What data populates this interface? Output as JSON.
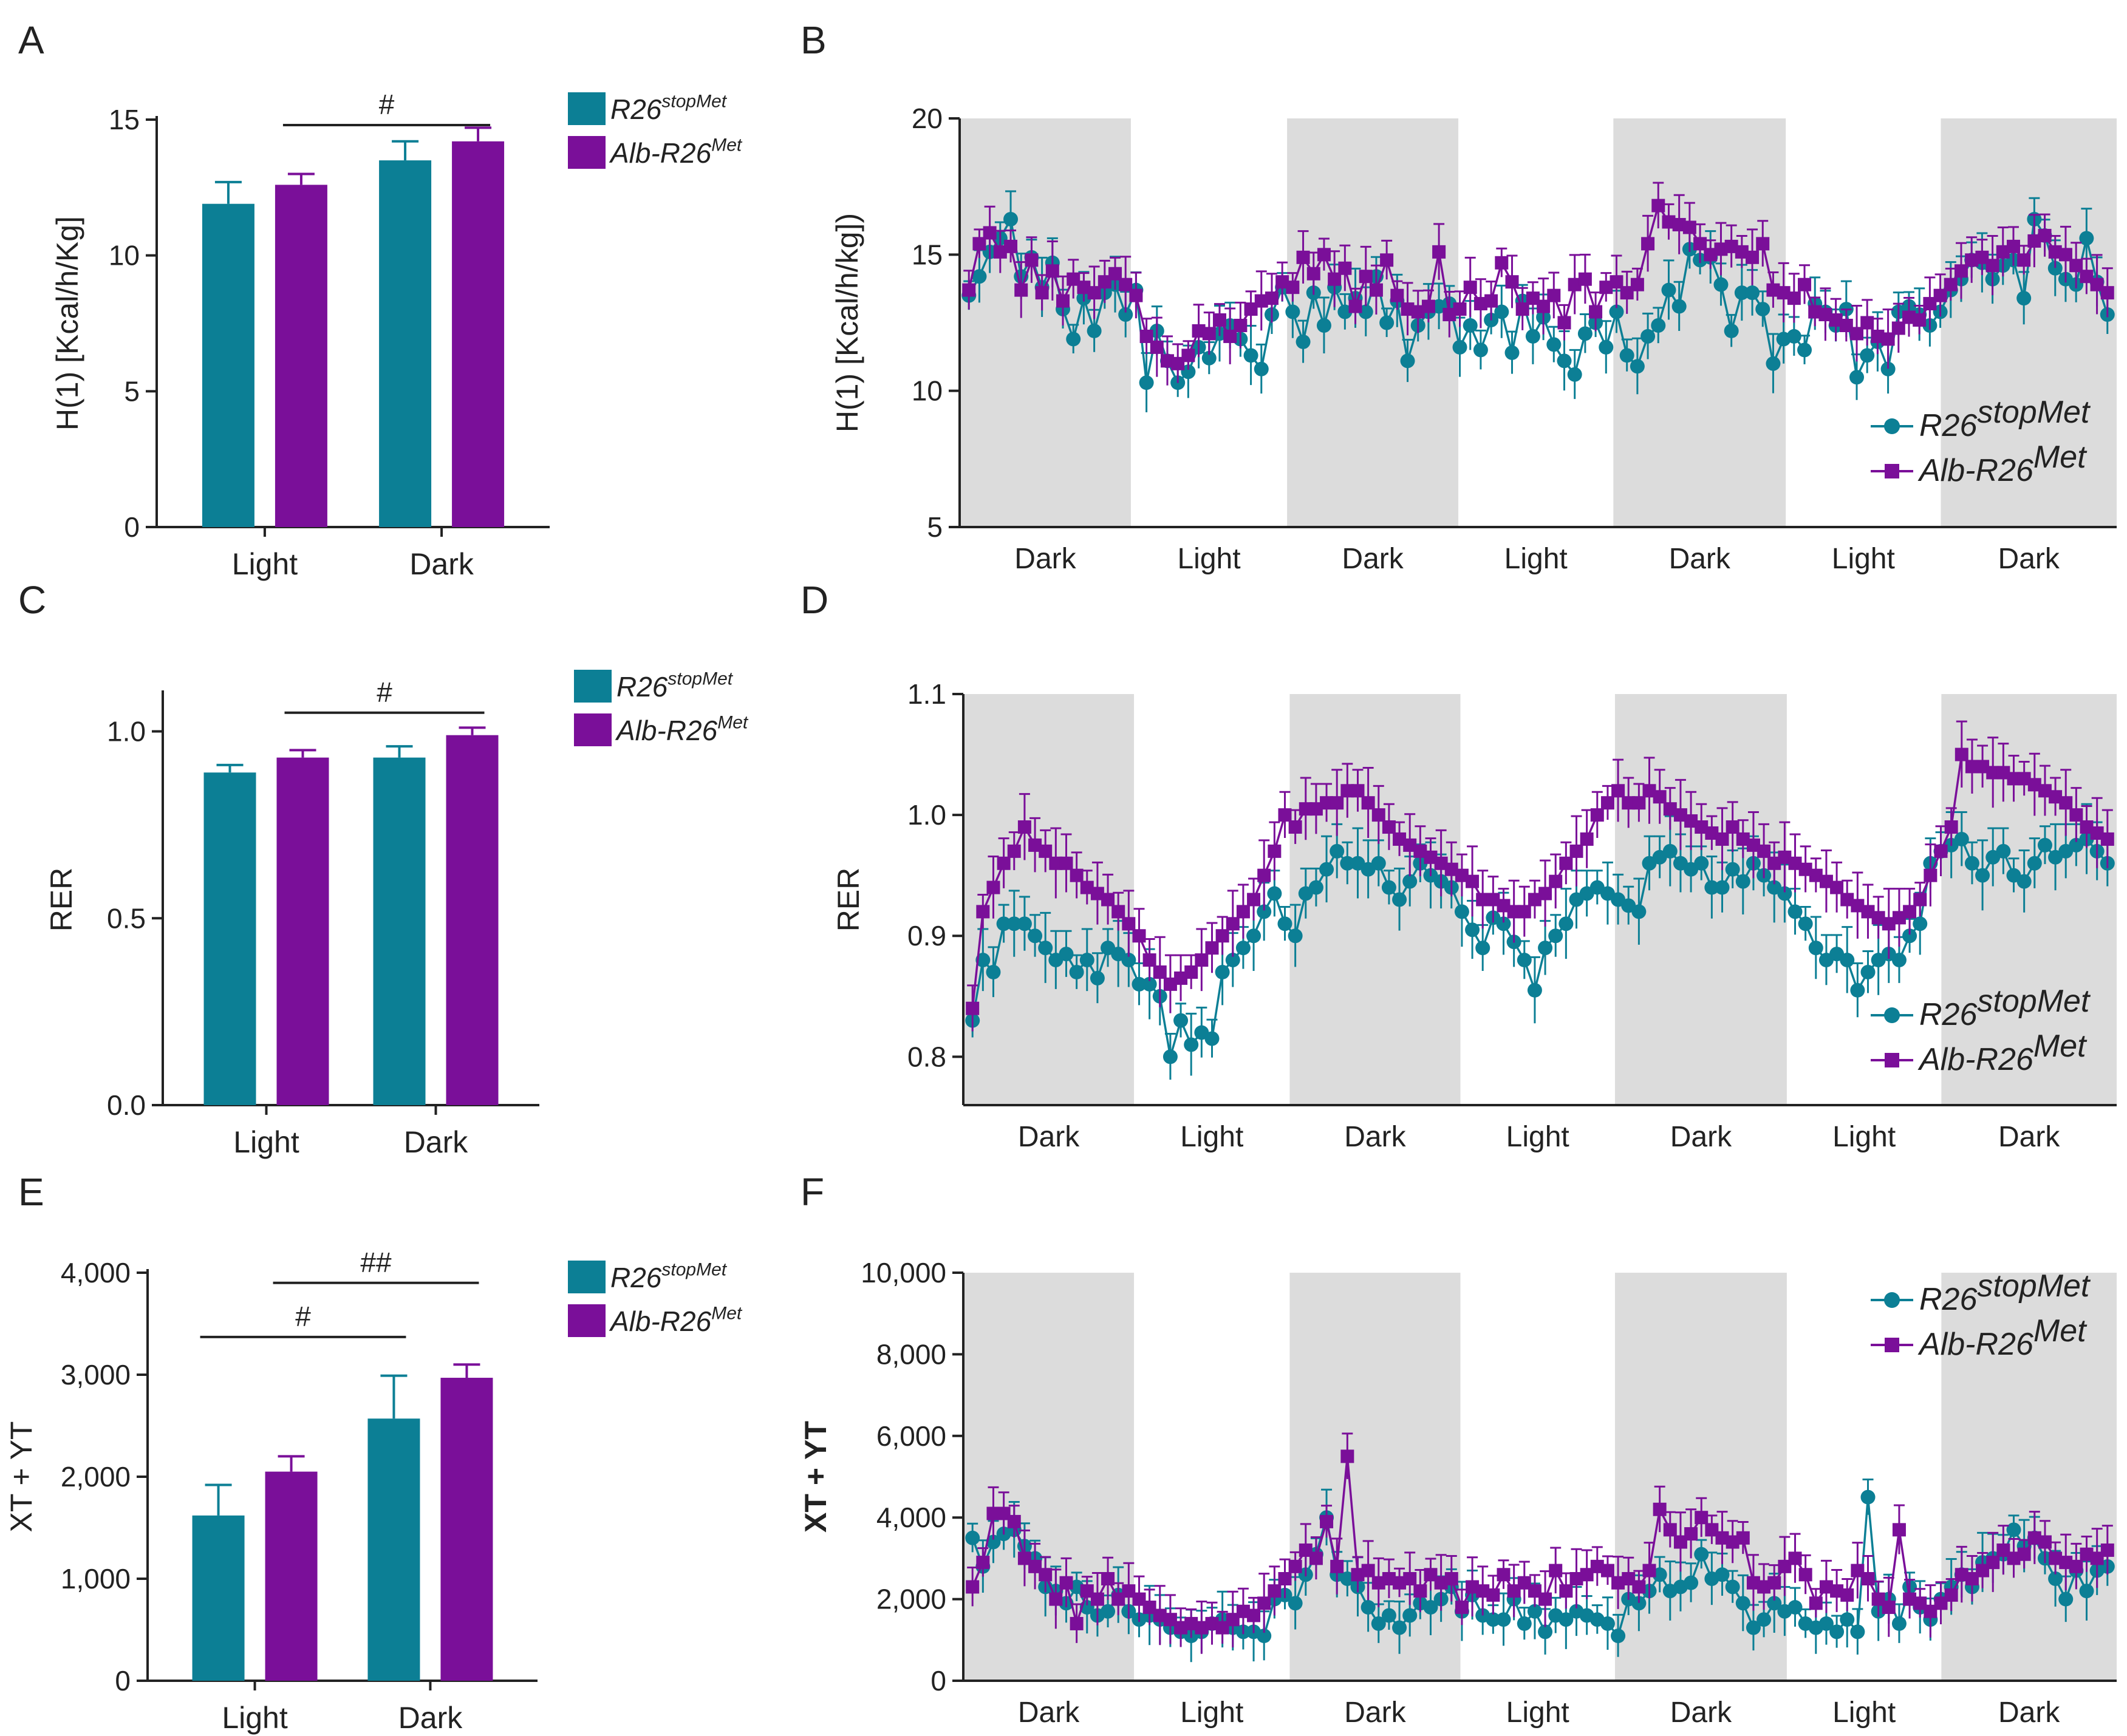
{
  "figure": {
    "colors": {
      "teal": "#0c7f95",
      "purple": "#7a0f99",
      "shade": "#dcdcdc",
      "axis": "#222222"
    }
  },
  "chart_data": [
    {
      "panel": "A",
      "type": "bar",
      "ylabel": "H(1) [Kcal/h/Kg]",
      "categories": [
        "Light",
        "Dark"
      ],
      "ylim": [
        0,
        15
      ],
      "yticks": [
        "0",
        "5",
        "10",
        "15"
      ],
      "series": [
        {
          "name": "R26",
          "sup": "stopMet",
          "values": [
            11.9,
            13.5
          ],
          "errors": [
            0.8,
            0.7
          ]
        },
        {
          "name": "Alb-R26",
          "sup": "Met",
          "values": [
            12.6,
            14.2
          ],
          "errors": [
            0.4,
            0.5
          ]
        }
      ],
      "significance": [
        {
          "label": "#",
          "from": [
            0,
            1
          ],
          "to": [
            1,
            1
          ],
          "level": 14.8
        }
      ]
    },
    {
      "panel": "B",
      "type": "line",
      "ylabel": "H(1) [Kcal/h/kg])",
      "ylim": [
        5,
        20
      ],
      "yticks": [
        "5",
        "10",
        "15",
        "20"
      ],
      "legend": "bottom-right",
      "period_labels": [
        "Dark",
        "Light",
        "Dark",
        "Light",
        "Dark",
        "Light",
        "Dark"
      ],
      "series": [
        {
          "name": "R26",
          "sup": "stopMet",
          "marker": "circle",
          "values": [
            13.5,
            14.2,
            15.1,
            15.6,
            16.3,
            14.2,
            14.9,
            13.8,
            14.7,
            13.0,
            11.9,
            13.4,
            12.2,
            13.6,
            13.9,
            12.8,
            13.7,
            10.3,
            12.2,
            11.1,
            10.3,
            10.7,
            11.6,
            11.2,
            12.1,
            12.4,
            11.9,
            11.3,
            10.8,
            12.8,
            13.8,
            12.9,
            11.8,
            13.6,
            12.4,
            13.8,
            12.9,
            13.4,
            12.9,
            14.2,
            12.5,
            13.3,
            11.1,
            12.4,
            12.9,
            13.1,
            13.2,
            11.6,
            12.4,
            11.5,
            12.6,
            12.9,
            11.4,
            13.3,
            12.0,
            12.7,
            11.7,
            11.1,
            10.6,
            12.1,
            12.5,
            11.6,
            12.9,
            11.3,
            10.9,
            12.0,
            12.4,
            13.7,
            13.1,
            15.2,
            14.8,
            14.9,
            13.9,
            12.2,
            13.6,
            13.6,
            13.0,
            11.0,
            11.9,
            12.0,
            11.5,
            13.2,
            12.9,
            12.4,
            13.0,
            10.5,
            11.3,
            11.8,
            10.8,
            12.9,
            13.1,
            12.8,
            12.4,
            12.9,
            13.7,
            14.1,
            14.8,
            14.7,
            14.1,
            14.6,
            14.8,
            13.4,
            16.3,
            15.7,
            14.5,
            14.1,
            13.9,
            15.6,
            14.0,
            12.8
          ]
        },
        {
          "name": "Alb-R26",
          "sup": "Met",
          "marker": "square",
          "values": [
            13.7,
            15.4,
            15.8,
            15.1,
            15.3,
            13.7,
            14.8,
            13.6,
            14.4,
            13.3,
            14.1,
            13.8,
            13.6,
            14.0,
            14.3,
            13.9,
            13.5,
            12.0,
            11.6,
            11.1,
            11.0,
            11.3,
            12.2,
            12.1,
            12.6,
            12.0,
            12.4,
            13.0,
            13.3,
            13.4,
            14.0,
            13.8,
            14.9,
            14.3,
            15.0,
            14.1,
            14.5,
            13.1,
            14.2,
            13.7,
            14.8,
            13.5,
            13.0,
            12.9,
            13.1,
            15.1,
            12.8,
            13.0,
            13.8,
            13.2,
            13.3,
            14.7,
            14.0,
            13.0,
            13.4,
            13.1,
            13.5,
            12.5,
            13.9,
            14.1,
            12.9,
            13.8,
            14.0,
            13.6,
            13.9,
            15.4,
            16.8,
            16.2,
            16.1,
            16.0,
            15.4,
            15.0,
            15.2,
            15.3,
            15.1,
            14.9,
            15.4,
            13.7,
            13.6,
            13.4,
            13.9,
            12.9,
            12.8,
            12.6,
            12.4,
            12.1,
            12.5,
            12.0,
            11.9,
            12.3,
            12.7,
            12.6,
            13.2,
            13.5,
            13.9,
            14.4,
            14.8,
            14.9,
            14.6,
            15.1,
            15.3,
            14.8,
            15.5,
            15.7,
            15.1,
            15.0,
            14.6,
            14.2,
            13.9,
            13.6
          ]
        }
      ]
    },
    {
      "panel": "C",
      "type": "bar",
      "ylabel": "RER",
      "categories": [
        "Light",
        "Dark"
      ],
      "ylim": [
        0,
        1.1
      ],
      "yticks": [
        "0.0",
        "0.5",
        "1.0"
      ],
      "series": [
        {
          "name": "R26",
          "sup": "stopMet",
          "values": [
            0.89,
            0.93
          ],
          "errors": [
            0.02,
            0.03
          ]
        },
        {
          "name": "Alb-R26",
          "sup": "Met",
          "values": [
            0.93,
            0.99
          ],
          "errors": [
            0.02,
            0.02
          ]
        }
      ],
      "significance": [
        {
          "label": "#",
          "from": [
            0,
            1
          ],
          "to": [
            1,
            1
          ],
          "level": 1.05
        }
      ]
    },
    {
      "panel": "D",
      "type": "line",
      "ylabel": "RER",
      "ylim": [
        0.76,
        1.1
      ],
      "yticks": [
        "0.8",
        "0.9",
        "1.0",
        "1.1"
      ],
      "legend": "bottom-right",
      "period_labels": [
        "Dark",
        "Light",
        "Dark",
        "Light",
        "Dark",
        "Light",
        "Dark"
      ],
      "series": [
        {
          "name": "R26",
          "sup": "stopMet",
          "marker": "circle",
          "values": [
            0.83,
            0.88,
            0.87,
            0.91,
            0.91,
            0.91,
            0.9,
            0.89,
            0.88,
            0.885,
            0.87,
            0.88,
            0.865,
            0.89,
            0.885,
            0.88,
            0.86,
            0.86,
            0.85,
            0.8,
            0.83,
            0.81,
            0.82,
            0.815,
            0.87,
            0.88,
            0.89,
            0.9,
            0.92,
            0.935,
            0.91,
            0.9,
            0.935,
            0.94,
            0.955,
            0.97,
            0.96,
            0.96,
            0.955,
            0.96,
            0.94,
            0.93,
            0.945,
            0.96,
            0.95,
            0.945,
            0.94,
            0.92,
            0.905,
            0.89,
            0.915,
            0.91,
            0.895,
            0.88,
            0.855,
            0.89,
            0.9,
            0.91,
            0.93,
            0.935,
            0.94,
            0.935,
            0.93,
            0.925,
            0.92,
            0.96,
            0.965,
            0.97,
            0.96,
            0.955,
            0.96,
            0.94,
            0.94,
            0.955,
            0.945,
            0.96,
            0.95,
            0.94,
            0.935,
            0.92,
            0.91,
            0.89,
            0.88,
            0.885,
            0.88,
            0.855,
            0.87,
            0.88,
            0.885,
            0.88,
            0.9,
            0.91,
            0.96,
            0.97,
            0.975,
            0.98,
            0.96,
            0.95,
            0.965,
            0.97,
            0.95,
            0.945,
            0.96,
            0.975,
            0.965,
            0.97,
            0.975,
            0.98,
            0.97,
            0.96
          ]
        },
        {
          "name": "Alb-R26",
          "sup": "Met",
          "marker": "square",
          "values": [
            0.84,
            0.92,
            0.94,
            0.96,
            0.97,
            0.99,
            0.975,
            0.97,
            0.96,
            0.96,
            0.95,
            0.94,
            0.935,
            0.93,
            0.92,
            0.91,
            0.9,
            0.88,
            0.87,
            0.86,
            0.865,
            0.87,
            0.88,
            0.89,
            0.9,
            0.91,
            0.92,
            0.93,
            0.95,
            0.97,
            1.0,
            0.99,
            1.005,
            1.005,
            1.01,
            1.01,
            1.02,
            1.02,
            1.01,
            1.0,
            0.99,
            0.98,
            0.975,
            0.97,
            0.965,
            0.96,
            0.955,
            0.95,
            0.945,
            0.93,
            0.93,
            0.925,
            0.92,
            0.92,
            0.93,
            0.935,
            0.945,
            0.96,
            0.97,
            0.98,
            1.0,
            1.01,
            1.02,
            1.01,
            1.01,
            1.02,
            1.015,
            1.005,
            1.0,
            0.995,
            0.99,
            0.985,
            0.98,
            0.99,
            0.98,
            0.975,
            0.97,
            0.96,
            0.965,
            0.96,
            0.955,
            0.95,
            0.945,
            0.94,
            0.93,
            0.925,
            0.92,
            0.915,
            0.91,
            0.915,
            0.92,
            0.93,
            0.95,
            0.97,
            0.99,
            1.05,
            1.04,
            1.04,
            1.035,
            1.035,
            1.03,
            1.03,
            1.025,
            1.02,
            1.015,
            1.01,
            1.0,
            0.99,
            0.985,
            0.98
          ]
        }
      ]
    },
    {
      "panel": "E",
      "type": "bar",
      "ylabel": "XT + YT",
      "categories": [
        "Light",
        "Dark"
      ],
      "ylim": [
        0,
        4000
      ],
      "yticks": [
        "0",
        "1,000",
        "2,000",
        "3,000",
        "4,000"
      ],
      "series": [
        {
          "name": "R26",
          "sup": "stopMet",
          "values": [
            1620,
            2570
          ],
          "errors": [
            300,
            420
          ]
        },
        {
          "name": "Alb-R26",
          "sup": "Met",
          "values": [
            2050,
            2970
          ],
          "errors": [
            150,
            130
          ]
        }
      ],
      "significance": [
        {
          "label": "#",
          "from": [
            0,
            0
          ],
          "to": [
            1,
            0
          ],
          "level": 3370
        },
        {
          "label": "##",
          "from": [
            0,
            1
          ],
          "to": [
            1,
            1
          ],
          "level": 3900
        }
      ]
    },
    {
      "panel": "F",
      "type": "line",
      "ylabel": "XT + YT",
      "ylim": [
        0,
        10000
      ],
      "yticks": [
        "0",
        "2,000",
        "4,000",
        "6,000",
        "8,000",
        "10,000"
      ],
      "legend": "top-right",
      "period_labels": [
        "Dark",
        "Light",
        "Dark",
        "Light",
        "Dark",
        "Light",
        "Dark"
      ],
      "series": [
        {
          "name": "R26",
          "sup": "stopMet",
          "marker": "circle",
          "values": [
            3500,
            2800,
            3400,
            3600,
            3700,
            3300,
            3000,
            2300,
            2200,
            1900,
            2300,
            1800,
            1600,
            1700,
            2100,
            1700,
            1500,
            1600,
            1500,
            1300,
            1200,
            1100,
            1200,
            1400,
            1500,
            1300,
            1200,
            1200,
            1100,
            2000,
            2100,
            1900,
            2600,
            3100,
            4000,
            2600,
            2500,
            2300,
            1800,
            1400,
            1600,
            1300,
            1600,
            1900,
            1800,
            2000,
            2300,
            1700,
            2100,
            1600,
            1500,
            1500,
            2000,
            1400,
            1700,
            1200,
            1600,
            1500,
            1700,
            1600,
            1500,
            1400,
            1100,
            2000,
            1900,
            2200,
            2600,
            2200,
            2300,
            2400,
            3100,
            2500,
            2600,
            2300,
            1900,
            1300,
            1500,
            1900,
            1700,
            1800,
            1400,
            1300,
            1400,
            1200,
            1500,
            1200,
            4500,
            1700,
            2000,
            1400,
            2300,
            1800,
            1500,
            2000,
            2300,
            2600,
            2300,
            2900,
            3000,
            3100,
            3700,
            3300,
            3500,
            3000,
            2500,
            2000,
            2700,
            2200,
            2700,
            2800
          ]
        },
        {
          "name": "Alb-R26",
          "sup": "Met",
          "marker": "square",
          "values": [
            2300,
            2900,
            4100,
            4100,
            3900,
            3000,
            2800,
            2600,
            2000,
            2400,
            1400,
            2200,
            2000,
            2500,
            2000,
            2200,
            2000,
            1800,
            1600,
            1500,
            1300,
            1400,
            1300,
            1400,
            1300,
            1500,
            1700,
            1600,
            1900,
            2200,
            2500,
            2800,
            3200,
            3000,
            3900,
            2800,
            5500,
            2600,
            2700,
            2400,
            2500,
            2400,
            2500,
            2200,
            2600,
            2400,
            2500,
            1800,
            2300,
            2200,
            2100,
            2600,
            2200,
            2400,
            2200,
            2000,
            2700,
            2200,
            2500,
            2600,
            2800,
            2700,
            2400,
            2500,
            2300,
            2700,
            4200,
            3700,
            3400,
            3600,
            4000,
            3700,
            3500,
            3400,
            3500,
            2400,
            2300,
            2400,
            2800,
            3000,
            2600,
            1900,
            2300,
            2200,
            2100,
            2700,
            2500,
            2000,
            1800,
            3700,
            2000,
            1900,
            1700,
            1900,
            2100,
            2600,
            2500,
            2700,
            2900,
            3200,
            3000,
            3100,
            3500,
            3400,
            3000,
            2900,
            2800,
            3100,
            3000,
            3200
          ]
        }
      ]
    }
  ],
  "panel_letters": [
    "A",
    "B",
    "C",
    "D",
    "E",
    "F"
  ]
}
